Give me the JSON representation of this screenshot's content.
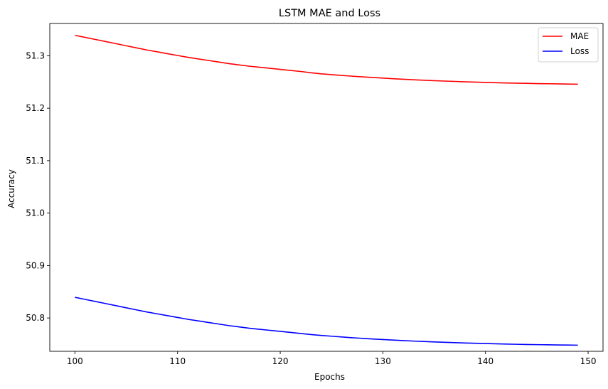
{
  "chart_data": {
    "type": "line",
    "title": "LSTM MAE and Loss",
    "xlabel": "Epochs",
    "ylabel": "Accuracy",
    "xlim": [
      97.55,
      151.45
    ],
    "ylim": [
      50.7365,
      51.3615
    ],
    "xticks": [
      100,
      110,
      120,
      130,
      140,
      150
    ],
    "yticks": [
      50.8,
      50.9,
      51.0,
      51.1,
      51.2,
      51.3
    ],
    "ytick_labels": [
      "50.8",
      "50.9",
      "51.0",
      "51.1",
      "51.2",
      "51.3"
    ],
    "grid": false,
    "legend_position": "top-right",
    "series": [
      {
        "name": "MAE",
        "color": "#ff0000",
        "x": [
          100,
          101,
          102,
          103,
          104,
          105,
          106,
          107,
          108,
          109,
          110,
          111,
          112,
          113,
          114,
          115,
          116,
          117,
          118,
          119,
          120,
          121,
          122,
          123,
          124,
          125,
          126,
          127,
          128,
          129,
          130,
          131,
          132,
          133,
          134,
          135,
          136,
          137,
          138,
          139,
          140,
          141,
          142,
          143,
          144,
          145,
          146,
          147,
          148,
          149
        ],
        "y": [
          51.339,
          51.335,
          51.331,
          51.327,
          51.323,
          51.319,
          51.315,
          51.311,
          51.3075,
          51.304,
          51.3005,
          51.297,
          51.294,
          51.291,
          51.288,
          51.285,
          51.2825,
          51.28,
          51.278,
          51.276,
          51.274,
          51.272,
          51.27,
          51.2675,
          51.2655,
          51.264,
          51.2625,
          51.261,
          51.2597,
          51.2585,
          51.2573,
          51.2562,
          51.2552,
          51.2542,
          51.2533,
          51.2525,
          51.2517,
          51.251,
          51.2503,
          51.2497,
          51.2491,
          51.2486,
          51.2481,
          51.2477,
          51.2473,
          51.2469,
          51.2466,
          51.2463,
          51.246,
          51.2457
        ]
      },
      {
        "name": "Loss",
        "color": "#0000ff",
        "x": [
          100,
          101,
          102,
          103,
          104,
          105,
          106,
          107,
          108,
          109,
          110,
          111,
          112,
          113,
          114,
          115,
          116,
          117,
          118,
          119,
          120,
          121,
          122,
          123,
          124,
          125,
          126,
          127,
          128,
          129,
          130,
          131,
          132,
          133,
          134,
          135,
          136,
          137,
          138,
          139,
          140,
          141,
          142,
          143,
          144,
          145,
          146,
          147,
          148,
          149
        ],
        "y": [
          50.8395,
          50.8355,
          50.8315,
          50.8275,
          50.8235,
          50.8195,
          50.8155,
          50.8115,
          50.808,
          50.8045,
          50.801,
          50.7975,
          50.7945,
          50.7915,
          50.7885,
          50.7855,
          50.783,
          50.7805,
          50.7785,
          50.7765,
          50.7745,
          50.7725,
          50.7705,
          50.7685,
          50.7668,
          50.7653,
          50.7638,
          50.7624,
          50.7612,
          50.76,
          50.7589,
          50.7579,
          50.7569,
          50.756,
          50.7552,
          50.7544,
          50.7537,
          50.753,
          50.7524,
          50.7518,
          50.7513,
          50.7508,
          50.7503,
          50.7499,
          50.7495,
          50.7492,
          50.7489,
          50.7486,
          50.7484,
          50.7482
        ]
      }
    ]
  }
}
